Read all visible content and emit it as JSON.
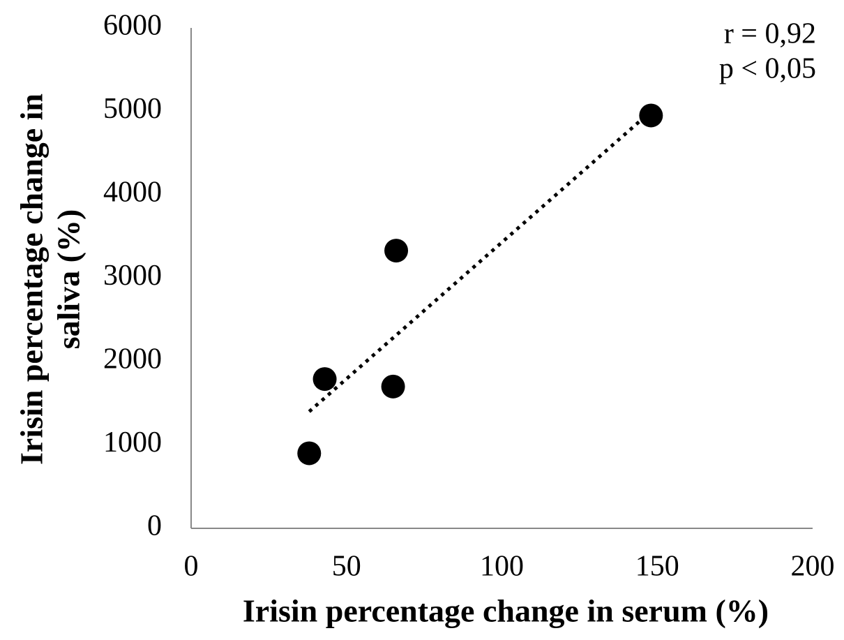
{
  "chart_data": {
    "type": "scatter",
    "xlabel": "Irisin percentage change in serum (%)",
    "ylabel": [
      "Irisin percentage change in",
      "saliva (%)"
    ],
    "annotations": [
      "r = 0,92",
      "p < 0,05"
    ],
    "x": [
      38,
      43,
      65,
      66,
      148
    ],
    "series": [
      {
        "color": "#000000",
        "values": [
          900,
          1790,
          1700,
          3330,
          4950
        ]
      }
    ],
    "trendline": {
      "x": [
        38,
        148
      ],
      "y": [
        1400,
        5000
      ]
    },
    "xlim": [
      0,
      200
    ],
    "xticks": [
      0,
      50,
      100,
      150,
      200
    ],
    "ylim": [
      0,
      6000
    ],
    "yticks": [
      0,
      1000,
      2000,
      3000,
      4000,
      5000,
      6000
    ]
  }
}
